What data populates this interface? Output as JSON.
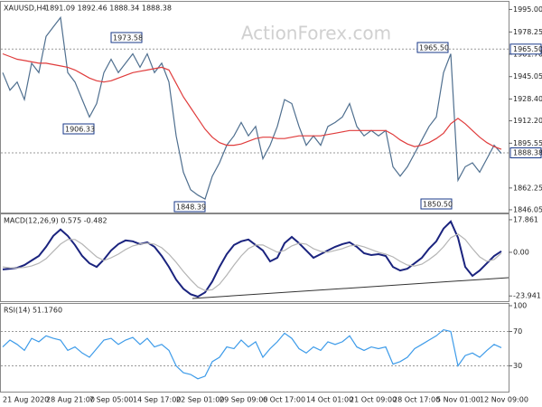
{
  "chart_data": [
    {
      "type": "line",
      "title": "XAUUSD,H4",
      "subtitle": "1891.09 1892.46 1888.34 1888.38",
      "watermark": "ActionForex.com",
      "ylim": [
        1844.0,
        2000.0
      ],
      "yticks": [
        {
          "value": 1995.0,
          "label": "1995.00"
        },
        {
          "value": 1978.25,
          "label": "1978.25"
        },
        {
          "value": 1961.7,
          "label": "1961.70"
        },
        {
          "value": 1945.05,
          "label": "1945.05"
        },
        {
          "value": 1928.4,
          "label": "1928.40"
        },
        {
          "value": 1912.2,
          "label": "1912.20"
        },
        {
          "value": 1895.55,
          "label": "1895.55"
        },
        {
          "value": 1862.25,
          "label": "1862.25"
        },
        {
          "value": 1846.05,
          "label": "1846.05"
        }
      ],
      "levels": [
        {
          "value": 1965.5,
          "label": "1965.50"
        },
        {
          "value": 1888.38,
          "label": "1888.38"
        }
      ],
      "annotations": [
        "1973.58",
        "1906.33",
        "1848.39",
        "1965.50",
        "1850.50"
      ],
      "series": [
        {
          "color": "#4f6f8f",
          "values": [
            1948,
            1935,
            1941,
            1928,
            1955,
            1948,
            1975,
            1982,
            1989,
            1948,
            1941,
            1928,
            1915,
            1925,
            1948,
            1958,
            1948,
            1955,
            1962,
            1952,
            1962,
            1948,
            1955,
            1941,
            1901,
            1874,
            1861,
            1857,
            1854,
            1871,
            1881,
            1894,
            1901,
            1911,
            1901,
            1908,
            1884,
            1894,
            1908,
            1928,
            1925,
            1908,
            1894,
            1901,
            1894,
            1908,
            1911,
            1915,
            1925,
            1908,
            1901,
            1905,
            1901,
            1905,
            1878,
            1871,
            1878,
            1888,
            1898,
            1908,
            1915,
            1948,
            1962,
            1868,
            1878,
            1881,
            1874,
            1884,
            1894,
            1888
          ]
        },
        {
          "color": "#e03c3c",
          "values": [
            1962,
            1960,
            1958,
            1957,
            1956,
            1955,
            1955,
            1954,
            1953,
            1952,
            1950,
            1947,
            1944,
            1942,
            1941,
            1942,
            1944,
            1946,
            1948,
            1949,
            1950,
            1951,
            1952,
            1950,
            1940,
            1930,
            1922,
            1914,
            1906,
            1900,
            1896,
            1894,
            1894,
            1895,
            1897,
            1899,
            1900,
            1900,
            1899,
            1899,
            1900,
            1901,
            1901,
            1901,
            1901,
            1902,
            1903,
            1904,
            1905,
            1905,
            1905,
            1905,
            1905,
            1905,
            1902,
            1898,
            1895,
            1893,
            1894,
            1896,
            1899,
            1903,
            1910,
            1914,
            1910,
            1905,
            1900,
            1896,
            1893,
            1891
          ]
        }
      ]
    },
    {
      "type": "line",
      "title": "MACD(12,26,9) 0.575 -0.482",
      "ylim": [
        -26.8,
        20.8
      ],
      "yticks": [
        17.861,
        {
          "value": 0,
          "label": "0.00"
        },
        -23.941
      ],
      "series": [
        {
          "color": "#1a237e",
          "values": [
            -9.4,
            -9,
            -8.5,
            -7,
            -4.5,
            -2,
            3,
            9,
            12.5,
            9,
            4,
            -2,
            -6,
            -8,
            -4,
            1,
            4.5,
            6.5,
            6,
            4.5,
            5.5,
            3,
            -2,
            -8,
            -15,
            -20,
            -23,
            -24.3,
            -22,
            -16,
            -8,
            -1,
            4,
            6,
            7,
            4,
            1,
            -5,
            -3,
            5,
            8.4,
            5,
            1,
            -3,
            -1,
            1,
            3,
            4.5,
            5.5,
            3,
            -0.5,
            -1.5,
            -1,
            -2,
            -8,
            -10,
            -9,
            -6,
            -3,
            2,
            6,
            13,
            16.9,
            8,
            -8,
            -12.9,
            -10,
            -6,
            -2,
            0.575
          ]
        },
        {
          "color": "#b4b4b4",
          "values": [
            -8,
            -8.5,
            -8.6,
            -8.3,
            -7.5,
            -6,
            -3.5,
            0.5,
            4.5,
            7,
            7,
            4.5,
            1,
            -2.5,
            -4.5,
            -3,
            -1,
            1.5,
            3.5,
            4.5,
            5,
            4.5,
            2.5,
            -1,
            -5.5,
            -10.5,
            -15,
            -19,
            -21,
            -20.5,
            -17.5,
            -12.5,
            -7,
            -2,
            2,
            4,
            4,
            2,
            0,
            1,
            3.5,
            5,
            4.5,
            2,
            0.5,
            0,
            1,
            2,
            3.5,
            4,
            3,
            1.5,
            0,
            -1,
            -2.5,
            -5,
            -7,
            -7.5,
            -6.5,
            -4,
            -1,
            3,
            8,
            10,
            7,
            2,
            -2.5,
            -5,
            -4,
            -0.482
          ]
        }
      ]
    },
    {
      "type": "line",
      "title": "RSI(14) 51.1760",
      "ylim": [
        0,
        100
      ],
      "yticks": [
        100,
        70,
        30
      ],
      "levels": [
        70,
        30
      ],
      "categories": [
        "21 Aug 2020",
        null,
        null,
        null,
        null,
        null,
        "28 Aug 21:00",
        null,
        null,
        null,
        null,
        null,
        "7 Sep 05:00",
        null,
        null,
        null,
        null,
        null,
        "14 Sep 17:00",
        null,
        null,
        null,
        null,
        null,
        "22 Sep 01:00",
        null,
        null,
        null,
        null,
        null,
        "29 Sep 09:00",
        null,
        null,
        null,
        null,
        null,
        "6 Oct 17:00",
        null,
        null,
        null,
        null,
        null,
        "14 Oct 01:00",
        null,
        null,
        null,
        null,
        null,
        "21 Oct 09:00",
        null,
        null,
        null,
        null,
        null,
        "28 Oct 17:00",
        null,
        null,
        null,
        null,
        null,
        "5 Nov 01:00",
        null,
        null,
        null,
        null,
        null,
        "12 Nov 09:00",
        null,
        null,
        null
      ],
      "series": [
        {
          "color": "#3d9be9",
          "values": [
            52,
            60,
            55,
            48,
            62,
            58,
            65,
            62,
            60,
            48,
            52,
            45,
            40,
            50,
            60,
            62,
            55,
            60,
            63,
            55,
            62,
            52,
            55,
            48,
            30,
            22,
            20,
            15,
            18,
            35,
            40,
            52,
            50,
            60,
            52,
            58,
            40,
            50,
            58,
            68,
            62,
            50,
            45,
            52,
            48,
            58,
            55,
            58,
            65,
            52,
            48,
            52,
            50,
            52,
            32,
            35,
            40,
            50,
            55,
            60,
            65,
            72,
            70,
            30,
            42,
            45,
            40,
            48,
            55,
            51.176
          ]
        }
      ]
    }
  ]
}
